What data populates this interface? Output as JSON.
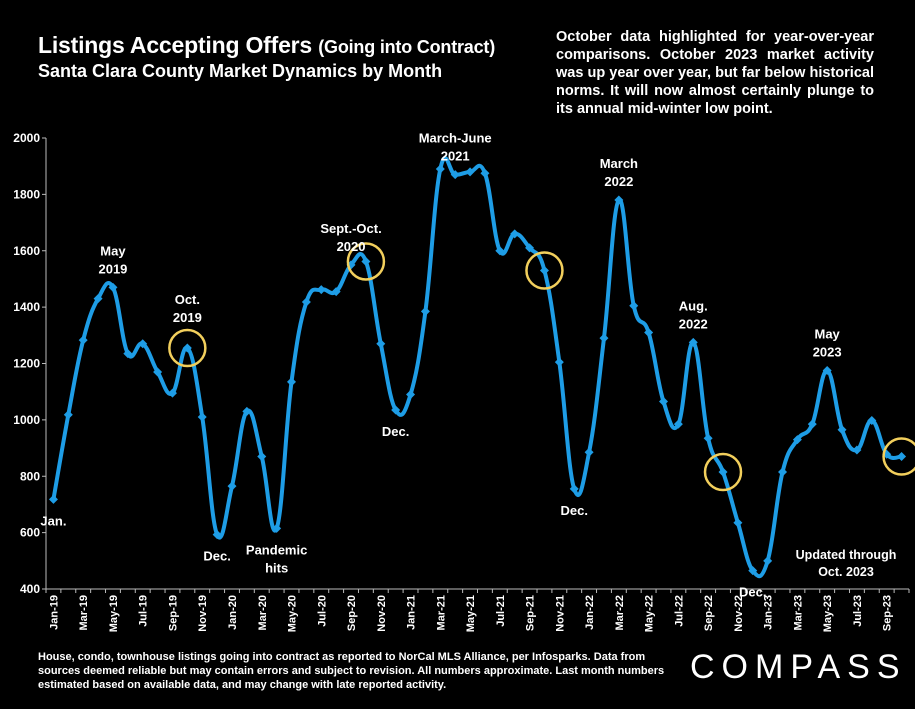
{
  "header": {
    "title": "Listings Accepting Offers",
    "title_suffix": "(Going into Contract)",
    "subtitle": "Santa Clara County Market Dynamics by Month"
  },
  "note": "October data highlighted for year-over-year comparisons. October 2023 market activity was up year over year, but far below historical norms. It will now almost certainly plunge to its annual mid-winter low point.",
  "footer": "House, condo, townhouse listings going into contract as reported to NorCal MLS Alliance, per Infosparks. Data from sources deemed reliable but may contain errors and subject to revision. All numbers approximate. Last month numbers estimated based on available data, and may change with late reported activity.",
  "logo": "COMPASS",
  "updated": [
    "Updated through",
    "Oct. 2023"
  ],
  "colors": {
    "line": "#1e9de6",
    "highlight": "#f2cf5c",
    "background": "#000000"
  },
  "chart_data": {
    "type": "line",
    "ylim": [
      400,
      2000
    ],
    "yticks": [
      400,
      600,
      800,
      1000,
      1200,
      1400,
      1600,
      1800,
      2000
    ],
    "grid": false,
    "x": [
      "Jan-19",
      "Feb-19",
      "Mar-19",
      "Apr-19",
      "May-19",
      "Jun-19",
      "Jul-19",
      "Aug-19",
      "Sep-19",
      "Oct-19",
      "Nov-19",
      "Dec-19",
      "Jan-20",
      "Feb-20",
      "Mar-20",
      "Apr-20",
      "May-20",
      "Jun-20",
      "Jul-20",
      "Aug-20",
      "Sep-20",
      "Oct-20",
      "Nov-20",
      "Dec-20",
      "Jan-21",
      "Feb-21",
      "Mar-21",
      "Apr-21",
      "May-21",
      "Jun-21",
      "Jul-21",
      "Aug-21",
      "Sep-21",
      "Oct-21",
      "Nov-21",
      "Dec-21",
      "Jan-22",
      "Feb-22",
      "Mar-22",
      "Apr-22",
      "May-22",
      "Jun-22",
      "Jul-22",
      "Aug-22",
      "Sep-22",
      "Oct-22",
      "Nov-22",
      "Dec-22",
      "Jan-23",
      "Feb-23",
      "Mar-23",
      "Apr-23",
      "May-23",
      "Jun-23",
      "Jul-23",
      "Aug-23",
      "Sep-23",
      "Oct-23"
    ],
    "xtick_labels": [
      "Jan-19",
      "Mar-19",
      "May-19",
      "Jul-19",
      "Sep-19",
      "Nov-19",
      "Jan-20",
      "Mar-20",
      "May-20",
      "Jul-20",
      "Sep-20",
      "Nov-20",
      "Jan-21",
      "Mar-21",
      "May-21",
      "Jul-21",
      "Sep-21",
      "Nov-21",
      "Jan-22",
      "Mar-22",
      "May-22",
      "Jul-22",
      "Sep-22",
      "Nov-22",
      "Jan-23",
      "Mar-23",
      "May-23",
      "Jul-23",
      "Sep-23"
    ],
    "series": [
      {
        "values": [
          718,
          1018,
          1283,
          1430,
          1470,
          1235,
          1270,
          1170,
          1095,
          1255,
          1010,
          593,
          765,
          1030,
          870,
          615,
          1135,
          1418,
          1462,
          1455,
          1550,
          1562,
          1270,
          1035,
          1090,
          1385,
          1890,
          1870,
          1880,
          1875,
          1600,
          1660,
          1610,
          1530,
          1205,
          755,
          885,
          1290,
          1780,
          1405,
          1310,
          1065,
          985,
          1275,
          935,
          815,
          635,
          465,
          500,
          815,
          930,
          985,
          1175,
          965,
          893,
          998,
          878,
          870
        ]
      }
    ],
    "highlights": [
      "Oct-19",
      "Oct-20",
      "Oct-21",
      "Oct-22",
      "Oct-23"
    ],
    "annotations": [
      {
        "x": "May-19",
        "lines": [
          "May",
          "2019"
        ],
        "pos": "above"
      },
      {
        "x": "Oct-19",
        "lines": [
          "Oct.",
          "2019"
        ],
        "pos": "above"
      },
      {
        "x": "Dec-19",
        "lines": [
          "Dec."
        ],
        "pos": "below"
      },
      {
        "x": "Jan-19",
        "lines": [
          "Jan."
        ],
        "pos": "below"
      },
      {
        "x": "Apr-20",
        "lines": [
          "Pandemic",
          "hits"
        ],
        "pos": "below"
      },
      {
        "x": "Sep-20",
        "lines": [
          "Sept.-Oct.",
          "2020"
        ],
        "pos": "above"
      },
      {
        "x": "Dec-20",
        "lines": [
          "Dec."
        ],
        "pos": "below"
      },
      {
        "x": "Apr-21",
        "lines": [
          "March-June",
          "2021"
        ],
        "pos": "above"
      },
      {
        "x": "Dec-21",
        "lines": [
          "Dec."
        ],
        "pos": "below"
      },
      {
        "x": "Mar-22",
        "lines": [
          "March",
          "2022"
        ],
        "pos": "above"
      },
      {
        "x": "Aug-22",
        "lines": [
          "Aug.",
          "2022"
        ],
        "pos": "above"
      },
      {
        "x": "Dec-22",
        "lines": [
          "Dec."
        ],
        "pos": "below"
      },
      {
        "x": "May-23",
        "lines": [
          "May",
          "2023"
        ],
        "pos": "above"
      }
    ]
  }
}
